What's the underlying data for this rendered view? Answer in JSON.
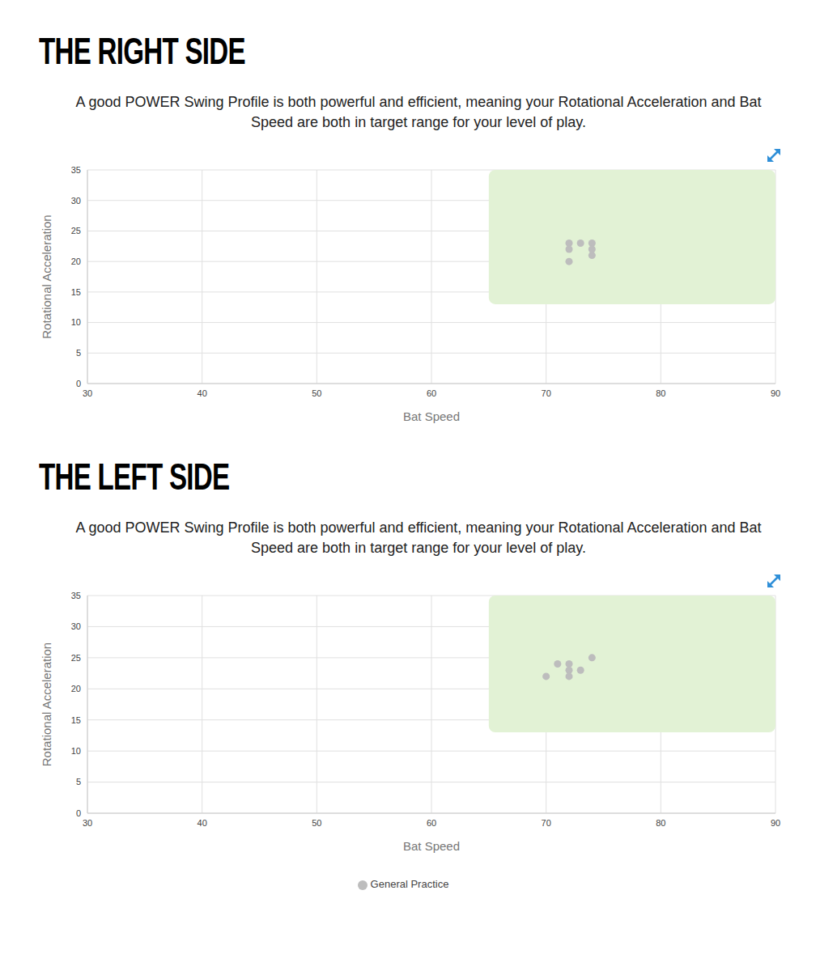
{
  "chart_data": [
    {
      "type": "scatter",
      "title": "THE RIGHT SIDE",
      "subtitle": "A good POWER Swing Profile is both powerful and efficient, meaning your Rotational Acceleration and Bat Speed are both in target range for your level of play.",
      "x_label": "Bat Speed",
      "y_label": "Rotational Acceleration",
      "xlim": [
        30,
        90
      ],
      "xticks": [
        30,
        40,
        50,
        60,
        70,
        80,
        90
      ],
      "ylim": [
        0,
        35
      ],
      "yticks": [
        0,
        5,
        10,
        15,
        20,
        25,
        30,
        35
      ],
      "grid": true,
      "target_range": {
        "x": [
          65,
          90
        ],
        "y": [
          13,
          35
        ],
        "color": "#e2f2d5"
      },
      "series": [
        {
          "color": "#bdbdbd",
          "marker": "circle",
          "x": [
            72,
            72,
            72,
            73,
            74,
            74,
            74
          ],
          "values": [
            23,
            22,
            20,
            23,
            23,
            22,
            21
          ]
        }
      ]
    },
    {
      "type": "scatter",
      "title": "THE LEFT SIDE",
      "subtitle": "A good POWER Swing Profile is both powerful and efficient, meaning your Rotational Acceleration and Bat Speed are both in target range for your level of play.",
      "x_label": "Bat Speed",
      "y_label": "Rotational Acceleration",
      "xlim": [
        30,
        90
      ],
      "xticks": [
        30,
        40,
        50,
        60,
        70,
        80,
        90
      ],
      "ylim": [
        0,
        35
      ],
      "yticks": [
        0,
        5,
        10,
        15,
        20,
        25,
        30,
        35
      ],
      "grid": true,
      "legend": "bottom",
      "target_range": {
        "x": [
          65,
          90
        ],
        "y": [
          13,
          35
        ],
        "color": "#e2f2d5"
      },
      "series": [
        {
          "name": "General Practice",
          "color": "#bdbdbd",
          "marker": "circle",
          "x": [
            70,
            71,
            72,
            72,
            72,
            73,
            74
          ],
          "values": [
            22,
            24,
            24,
            23,
            22,
            23,
            25
          ]
        }
      ]
    }
  ]
}
